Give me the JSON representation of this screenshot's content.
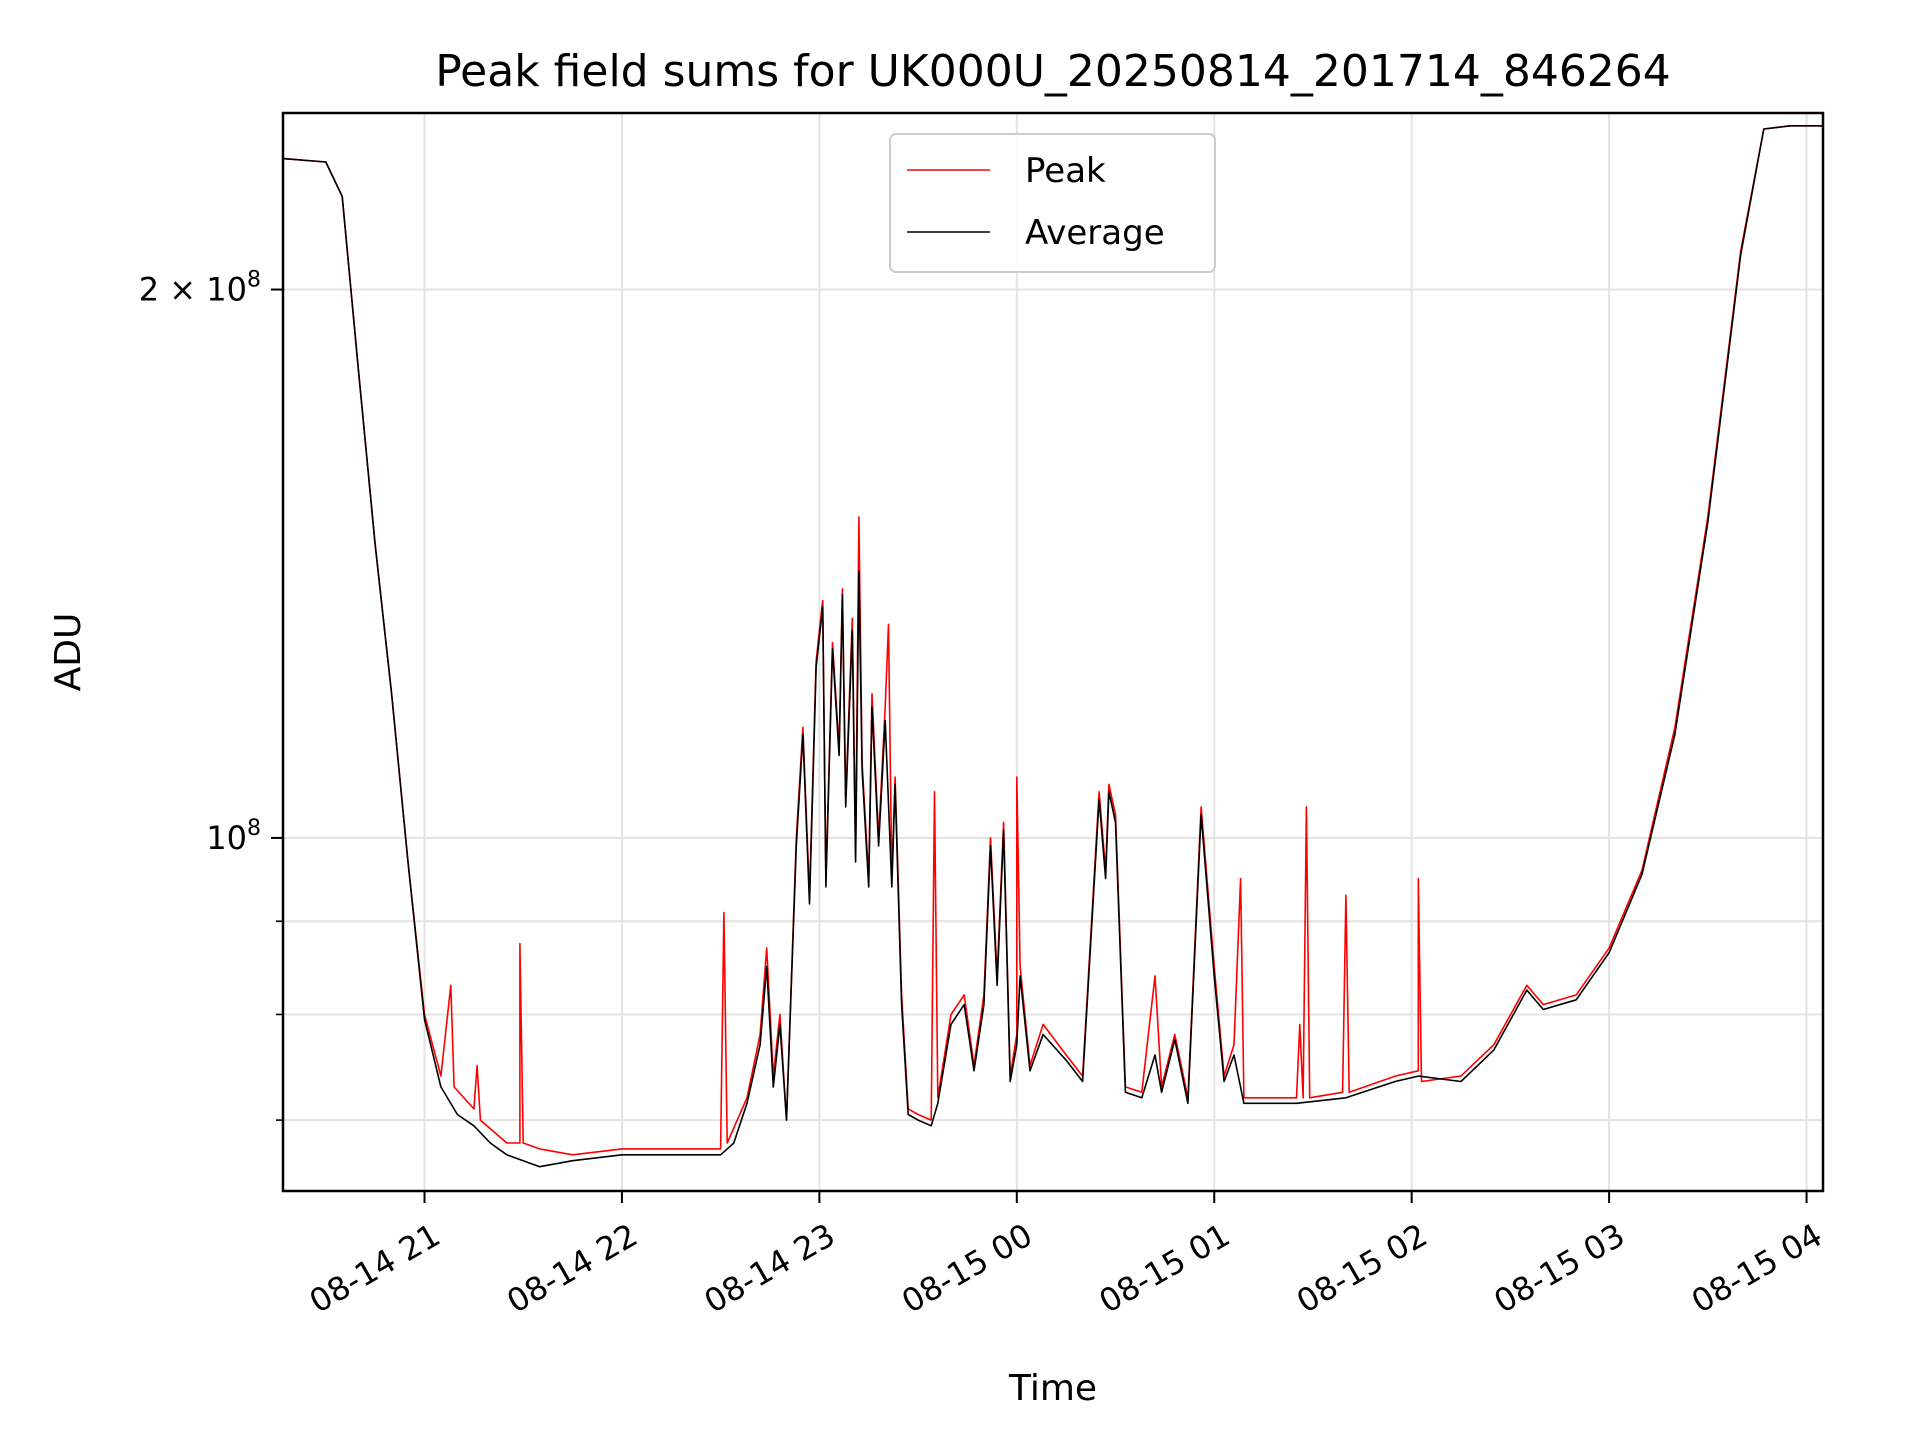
{
  "chart_data": {
    "type": "line",
    "title": "Peak field sums for UK000U_20250814_201714_846264",
    "xlabel": "Time",
    "ylabel": "ADU",
    "y_scale": "log",
    "ylim": [
      64000000,
      250000000
    ],
    "xlim": [
      "2025-08-14 20:17",
      "2025-08-15 04:05"
    ],
    "grid": true,
    "legend_position": "top-center",
    "x_ticks": [
      {
        "t": "2025-08-14 21:00",
        "label": "08-14 21"
      },
      {
        "t": "2025-08-14 22:00",
        "label": "08-14 22"
      },
      {
        "t": "2025-08-14 23:00",
        "label": "08-14 23"
      },
      {
        "t": "2025-08-15 00:00",
        "label": "08-15 00"
      },
      {
        "t": "2025-08-15 01:00",
        "label": "08-15 01"
      },
      {
        "t": "2025-08-15 02:00",
        "label": "08-15 02"
      },
      {
        "t": "2025-08-15 03:00",
        "label": "08-15 03"
      },
      {
        "t": "2025-08-15 04:00",
        "label": "08-15 04"
      }
    ],
    "y_ticks": [
      {
        "value": 200000000,
        "base": "2 × 10",
        "exp": "8"
      },
      {
        "value": 100000000,
        "base": "10",
        "exp": "8"
      }
    ],
    "y_minor_ticks": [
      70000000,
      80000000,
      90000000
    ],
    "series": [
      {
        "name": "Peak",
        "color": "#ff0000",
        "points": [
          [
            "2025-08-14 20:17",
            236000000
          ],
          [
            "2025-08-14 20:30",
            235000000
          ],
          [
            "2025-08-14 20:35",
            225000000
          ],
          [
            "2025-08-14 20:40",
            180000000
          ],
          [
            "2025-08-14 20:45",
            145000000
          ],
          [
            "2025-08-14 20:50",
            120000000
          ],
          [
            "2025-08-14 20:55",
            97000000
          ],
          [
            "2025-08-14 21:00",
            80000000
          ],
          [
            "2025-08-14 21:05",
            74000000
          ],
          [
            "2025-08-14 21:08",
            83000000
          ],
          [
            "2025-08-14 21:09",
            73000000
          ],
          [
            "2025-08-14 21:15",
            71000000
          ],
          [
            "2025-08-14 21:16",
            75000000
          ],
          [
            "2025-08-14 21:17",
            70000000
          ],
          [
            "2025-08-14 21:25",
            68000000
          ],
          [
            "2025-08-14 21:29",
            68000000
          ],
          [
            "2025-08-14 21:29",
            87500000
          ],
          [
            "2025-08-14 21:30",
            68000000
          ],
          [
            "2025-08-14 21:35",
            67500000
          ],
          [
            "2025-08-14 21:45",
            67000000
          ],
          [
            "2025-08-14 22:00",
            67500000
          ],
          [
            "2025-08-14 22:20",
            67500000
          ],
          [
            "2025-08-14 22:30",
            67500000
          ],
          [
            "2025-08-14 22:31",
            91000000
          ],
          [
            "2025-08-14 22:32",
            68000000
          ],
          [
            "2025-08-14 22:38",
            72000000
          ],
          [
            "2025-08-14 22:42",
            78000000
          ],
          [
            "2025-08-14 22:44",
            87000000
          ],
          [
            "2025-08-14 22:46",
            74000000
          ],
          [
            "2025-08-14 22:48",
            80000000
          ],
          [
            "2025-08-14 22:50",
            70000000
          ],
          [
            "2025-08-14 22:53",
            100000000
          ],
          [
            "2025-08-14 22:55",
            115000000
          ],
          [
            "2025-08-14 22:57",
            93000000
          ],
          [
            "2025-08-14 22:59",
            125000000
          ],
          [
            "2025-08-14 23:01",
            135000000
          ],
          [
            "2025-08-14 23:02",
            95000000
          ],
          [
            "2025-08-14 23:04",
            128000000
          ],
          [
            "2025-08-14 23:06",
            112000000
          ],
          [
            "2025-08-14 23:07",
            137000000
          ],
          [
            "2025-08-14 23:08",
            105000000
          ],
          [
            "2025-08-14 23:10",
            132000000
          ],
          [
            "2025-08-14 23:11",
            98000000
          ],
          [
            "2025-08-14 23:12",
            150000000
          ],
          [
            "2025-08-14 23:13",
            110000000
          ],
          [
            "2025-08-14 23:15",
            95000000
          ],
          [
            "2025-08-14 23:16",
            120000000
          ],
          [
            "2025-08-14 23:18",
            100000000
          ],
          [
            "2025-08-14 23:20",
            118000000
          ],
          [
            "2025-08-14 23:21",
            131000000
          ],
          [
            "2025-08-14 23:22",
            95000000
          ],
          [
            "2025-08-14 23:23",
            108000000
          ],
          [
            "2025-08-14 23:25",
            82000000
          ],
          [
            "2025-08-14 23:27",
            71000000
          ],
          [
            "2025-08-14 23:30",
            70500000
          ],
          [
            "2025-08-14 23:34",
            70000000
          ],
          [
            "2025-08-14 23:35",
            106000000
          ],
          [
            "2025-08-14 23:36",
            72000000
          ],
          [
            "2025-08-14 23:40",
            80000000
          ],
          [
            "2025-08-14 23:44",
            82000000
          ],
          [
            "2025-08-14 23:47",
            75000000
          ],
          [
            "2025-08-14 23:50",
            82000000
          ],
          [
            "2025-08-14 23:52",
            100000000
          ],
          [
            "2025-08-14 23:54",
            84000000
          ],
          [
            "2025-08-14 23:56",
            102000000
          ],
          [
            "2025-08-14 23:58",
            74000000
          ],
          [
            "2025-08-15 00:00",
            78000000
          ],
          [
            "2025-08-15 00:00",
            108000000
          ],
          [
            "2025-08-15 00:01",
            85000000
          ],
          [
            "2025-08-15 00:04",
            75000000
          ],
          [
            "2025-08-15 00:08",
            79000000
          ],
          [
            "2025-08-15 00:15",
            76000000
          ],
          [
            "2025-08-15 00:20",
            74000000
          ],
          [
            "2025-08-15 00:25",
            106000000
          ],
          [
            "2025-08-15 00:27",
            96000000
          ],
          [
            "2025-08-15 00:28",
            107000000
          ],
          [
            "2025-08-15 00:30",
            103000000
          ],
          [
            "2025-08-15 00:33",
            73000000
          ],
          [
            "2025-08-15 00:38",
            72500000
          ],
          [
            "2025-08-15 00:42",
            84000000
          ],
          [
            "2025-08-15 00:44",
            73000000
          ],
          [
            "2025-08-15 00:48",
            78000000
          ],
          [
            "2025-08-15 00:52",
            72000000
          ],
          [
            "2025-08-15 00:56",
            104000000
          ],
          [
            "2025-08-15 01:00",
            85000000
          ],
          [
            "2025-08-15 01:03",
            74000000
          ],
          [
            "2025-08-15 01:06",
            77000000
          ],
          [
            "2025-08-15 01:08",
            95000000
          ],
          [
            "2025-08-15 01:09",
            72000000
          ],
          [
            "2025-08-15 01:25",
            72000000
          ],
          [
            "2025-08-15 01:26",
            79000000
          ],
          [
            "2025-08-15 01:27",
            72000000
          ],
          [
            "2025-08-15 01:28",
            104000000
          ],
          [
            "2025-08-15 01:29",
            72000000
          ],
          [
            "2025-08-15 01:39",
            72500000
          ],
          [
            "2025-08-15 01:40",
            93000000
          ],
          [
            "2025-08-15 01:41",
            72500000
          ],
          [
            "2025-08-15 01:55",
            74000000
          ],
          [
            "2025-08-15 02:02",
            74500000
          ],
          [
            "2025-08-15 02:02",
            95000000
          ],
          [
            "2025-08-15 02:03",
            73500000
          ],
          [
            "2025-08-15 02:15",
            74000000
          ],
          [
            "2025-08-15 02:25",
            77000000
          ],
          [
            "2025-08-15 02:35",
            83000000
          ],
          [
            "2025-08-15 02:40",
            81000000
          ],
          [
            "2025-08-15 02:50",
            82000000
          ],
          [
            "2025-08-15 03:00",
            87000000
          ],
          [
            "2025-08-15 03:10",
            96000000
          ],
          [
            "2025-08-15 03:20",
            115000000
          ],
          [
            "2025-08-15 03:30",
            150000000
          ],
          [
            "2025-08-15 03:40",
            210000000
          ],
          [
            "2025-08-15 03:47",
            245000000
          ],
          [
            "2025-08-15 03:55",
            246000000
          ],
          [
            "2025-08-15 04:05",
            246000000
          ]
        ]
      },
      {
        "name": "Average",
        "color": "#000000",
        "points": [
          [
            "2025-08-14 20:17",
            236000000
          ],
          [
            "2025-08-14 20:30",
            235000000
          ],
          [
            "2025-08-14 20:35",
            225000000
          ],
          [
            "2025-08-14 20:40",
            180000000
          ],
          [
            "2025-08-14 20:45",
            145000000
          ],
          [
            "2025-08-14 20:50",
            120000000
          ],
          [
            "2025-08-14 20:55",
            97000000
          ],
          [
            "2025-08-14 21:00",
            79500000
          ],
          [
            "2025-08-14 21:05",
            73000000
          ],
          [
            "2025-08-14 21:10",
            70500000
          ],
          [
            "2025-08-14 21:15",
            69500000
          ],
          [
            "2025-08-14 21:20",
            68000000
          ],
          [
            "2025-08-14 21:25",
            67000000
          ],
          [
            "2025-08-14 21:30",
            66500000
          ],
          [
            "2025-08-14 21:35",
            66000000
          ],
          [
            "2025-08-14 21:45",
            66500000
          ],
          [
            "2025-08-14 22:00",
            67000000
          ],
          [
            "2025-08-14 22:20",
            67000000
          ],
          [
            "2025-08-14 22:30",
            67000000
          ],
          [
            "2025-08-14 22:34",
            68000000
          ],
          [
            "2025-08-14 22:38",
            71500000
          ],
          [
            "2025-08-14 22:42",
            77000000
          ],
          [
            "2025-08-14 22:44",
            85000000
          ],
          [
            "2025-08-14 22:46",
            73000000
          ],
          [
            "2025-08-14 22:48",
            79000000
          ],
          [
            "2025-08-14 22:50",
            70000000
          ],
          [
            "2025-08-14 22:53",
            99000000
          ],
          [
            "2025-08-14 22:55",
            114000000
          ],
          [
            "2025-08-14 22:57",
            92000000
          ],
          [
            "2025-08-14 22:59",
            124000000
          ],
          [
            "2025-08-14 23:01",
            134000000
          ],
          [
            "2025-08-14 23:02",
            94000000
          ],
          [
            "2025-08-14 23:04",
            127000000
          ],
          [
            "2025-08-14 23:06",
            111000000
          ],
          [
            "2025-08-14 23:07",
            136000000
          ],
          [
            "2025-08-14 23:08",
            104000000
          ],
          [
            "2025-08-14 23:10",
            130000000
          ],
          [
            "2025-08-14 23:11",
            97000000
          ],
          [
            "2025-08-14 23:12",
            140000000
          ],
          [
            "2025-08-14 23:13",
            109000000
          ],
          [
            "2025-08-14 23:15",
            94000000
          ],
          [
            "2025-08-14 23:16",
            118000000
          ],
          [
            "2025-08-14 23:18",
            99000000
          ],
          [
            "2025-08-14 23:20",
            116000000
          ],
          [
            "2025-08-14 23:22",
            94000000
          ],
          [
            "2025-08-14 23:23",
            107000000
          ],
          [
            "2025-08-14 23:25",
            81000000
          ],
          [
            "2025-08-14 23:27",
            70500000
          ],
          [
            "2025-08-14 23:30",
            70000000
          ],
          [
            "2025-08-14 23:34",
            69500000
          ],
          [
            "2025-08-14 23:36",
            71500000
          ],
          [
            "2025-08-14 23:40",
            79000000
          ],
          [
            "2025-08-14 23:44",
            81000000
          ],
          [
            "2025-08-14 23:47",
            74500000
          ],
          [
            "2025-08-14 23:50",
            81000000
          ],
          [
            "2025-08-14 23:52",
            99000000
          ],
          [
            "2025-08-14 23:54",
            83000000
          ],
          [
            "2025-08-14 23:56",
            101000000
          ],
          [
            "2025-08-14 23:58",
            73500000
          ],
          [
            "2025-08-15 00:00",
            77000000
          ],
          [
            "2025-08-15 00:01",
            84000000
          ],
          [
            "2025-08-15 00:04",
            74500000
          ],
          [
            "2025-08-15 00:08",
            78000000
          ],
          [
            "2025-08-15 00:15",
            75500000
          ],
          [
            "2025-08-15 00:20",
            73500000
          ],
          [
            "2025-08-15 00:25",
            105000000
          ],
          [
            "2025-08-15 00:27",
            95000000
          ],
          [
            "2025-08-15 00:28",
            106000000
          ],
          [
            "2025-08-15 00:30",
            102000000
          ],
          [
            "2025-08-15 00:33",
            72500000
          ],
          [
            "2025-08-15 00:38",
            72000000
          ],
          [
            "2025-08-15 00:42",
            76000000
          ],
          [
            "2025-08-15 00:44",
            72500000
          ],
          [
            "2025-08-15 00:48",
            77500000
          ],
          [
            "2025-08-15 00:52",
            71500000
          ],
          [
            "2025-08-15 00:56",
            103000000
          ],
          [
            "2025-08-15 01:00",
            84000000
          ],
          [
            "2025-08-15 01:03",
            73500000
          ],
          [
            "2025-08-15 01:06",
            76000000
          ],
          [
            "2025-08-15 01:09",
            71500000
          ],
          [
            "2025-08-15 01:25",
            71500000
          ],
          [
            "2025-08-15 01:40",
            72000000
          ],
          [
            "2025-08-15 01:55",
            73500000
          ],
          [
            "2025-08-15 02:02",
            74000000
          ],
          [
            "2025-08-15 02:15",
            73500000
          ],
          [
            "2025-08-15 02:25",
            76500000
          ],
          [
            "2025-08-15 02:35",
            82500000
          ],
          [
            "2025-08-15 02:40",
            80500000
          ],
          [
            "2025-08-15 02:50",
            81500000
          ],
          [
            "2025-08-15 03:00",
            86500000
          ],
          [
            "2025-08-15 03:10",
            95500000
          ],
          [
            "2025-08-15 03:20",
            114000000
          ],
          [
            "2025-08-15 03:30",
            149000000
          ],
          [
            "2025-08-15 03:40",
            209000000
          ],
          [
            "2025-08-15 03:47",
            245000000
          ],
          [
            "2025-08-15 03:55",
            246000000
          ],
          [
            "2025-08-15 04:05",
            246000000
          ]
        ]
      }
    ]
  }
}
